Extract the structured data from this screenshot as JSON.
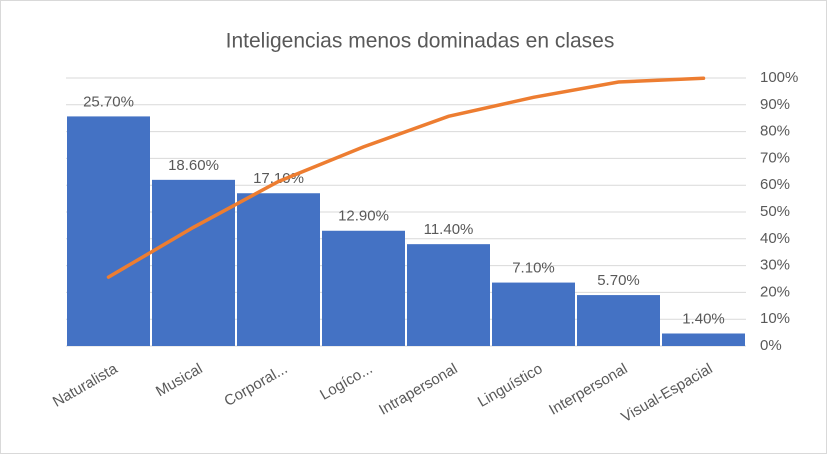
{
  "chart_data": {
    "type": "pareto",
    "title": "Inteligencias menos dominadas en clases",
    "categories": [
      "Naturalista",
      "Musical",
      "Corporal...",
      "Logíco...",
      "Intrapersonal",
      "Linguístico",
      "Interpersonal",
      "Visual-Espacial"
    ],
    "series": [
      {
        "color": "#4472c4",
        "values": [
          25.7,
          18.6,
          17.1,
          12.9,
          11.4,
          7.1,
          5.7,
          1.4
        ],
        "value_labels": [
          "25.70%",
          "18.60%",
          "17.10%",
          "12.90%",
          "11.40%",
          "7.10%",
          "5.70%",
          "1.40%"
        ]
      },
      {
        "color": "#ed7d31",
        "axis": "y2",
        "values": [
          25.7,
          44.3,
          61.4,
          74.3,
          85.7,
          92.8,
          98.5,
          99.9
        ]
      }
    ],
    "ylim": [
      0,
      30
    ],
    "y2lim": [
      0,
      100
    ],
    "y2ticks": [
      {
        "value": 0,
        "label": "0%"
      },
      {
        "value": 10,
        "label": "10%"
      },
      {
        "value": 20,
        "label": "20%"
      },
      {
        "value": 30,
        "label": "30%"
      },
      {
        "value": 40,
        "label": "40%"
      },
      {
        "value": 50,
        "label": "50%"
      },
      {
        "value": 60,
        "label": "60%"
      },
      {
        "value": 70,
        "label": "70%"
      },
      {
        "value": 80,
        "label": "80%"
      },
      {
        "value": 90,
        "label": "90%"
      },
      {
        "value": 100,
        "label": "100%"
      }
    ],
    "grid": true
  }
}
